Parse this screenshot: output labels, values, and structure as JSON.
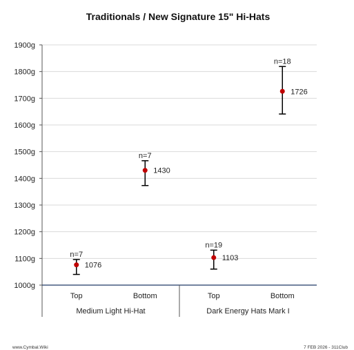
{
  "chart_data": {
    "type": "scatter",
    "title": "Traditionals / New Signature 15\" Hi-Hats",
    "ylim": [
      1000,
      1900
    ],
    "yticks": [
      1000,
      1100,
      1200,
      1300,
      1400,
      1500,
      1600,
      1700,
      1800,
      1900
    ],
    "yunit": "g",
    "grid": true,
    "categories": [
      "Top",
      "Bottom",
      "Top",
      "Bottom"
    ],
    "groups": [
      "Medium Light Hi-Hat",
      "Dark Energy Hats Mark I"
    ],
    "points": [
      {
        "group": "Medium Light Hi-Hat",
        "category": "Top",
        "mean": 1076,
        "low": 1040,
        "high": 1096,
        "n_label": "n=7"
      },
      {
        "group": "Medium Light Hi-Hat",
        "category": "Bottom",
        "mean": 1430,
        "low": 1373,
        "high": 1466,
        "n_label": "n=7"
      },
      {
        "group": "Dark Energy Hats Mark I",
        "category": "Top",
        "mean": 1103,
        "low": 1060,
        "high": 1131,
        "n_label": "n=19"
      },
      {
        "group": "Dark Energy Hats Mark I",
        "category": "Bottom",
        "mean": 1726,
        "low": 1641,
        "high": 1819,
        "n_label": "n=18"
      }
    ],
    "marker_color": "#c00000",
    "errorbar_color": "#000000",
    "grid_color": "#d9d9d9",
    "axis_color": "#1f3864"
  },
  "footer": {
    "left": "www.Cymbal.Wiki",
    "right": "7 FEB 2026 - 311Club"
  }
}
